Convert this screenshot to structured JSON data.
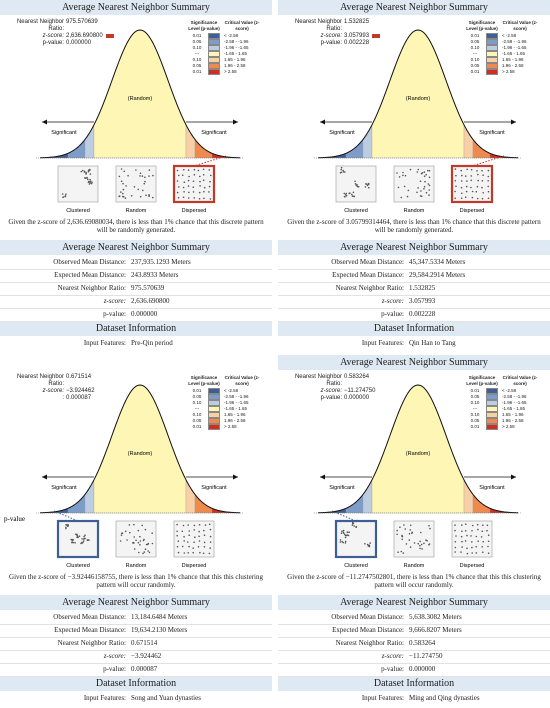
{
  "legend": {
    "header_p": "Significance Level (p-value)",
    "header_z": "Critical Value (z-score)",
    "rows": [
      {
        "p": "0.01",
        "z": "< -2.58",
        "color": "#3d5f95"
      },
      {
        "p": "0.05",
        "z": "-2.58 - -1.96",
        "color": "#7d9dc8"
      },
      {
        "p": "0.10",
        "z": "-1.96 - -1.65",
        "color": "#bccde3"
      },
      {
        "p": "---",
        "z": "-1.65 - 1.65",
        "color": "#fdf6b5"
      },
      {
        "p": "0.10",
        "z": "1.65 - 1.96",
        "color": "#f9cfa6"
      },
      {
        "p": "0.05",
        "z": "1.96 - 2.58",
        "color": "#ef8a4f"
      },
      {
        "p": "0.01",
        "z": "> 2.58",
        "color": "#cf2e22"
      }
    ]
  },
  "curve_labels": {
    "left": "Significant",
    "center": "(Random)",
    "right": "Significant"
  },
  "patterns": [
    "Clustered",
    "Random",
    "Dispersed"
  ],
  "panels": [
    {
      "title": "Average Nearest Neighbor Summary",
      "stats": [
        {
          "label": "Nearest Neighbor Ratio:",
          "value": "975.570639"
        },
        {
          "label": "z-score:",
          "value": "2,636.690800"
        },
        {
          "label": "p-value:",
          "value": "0.000000"
        }
      ],
      "marker_color": "#c0392b",
      "highlight": 2,
      "highlight_color": "#c0392b",
      "caption": "Given the z-score of 2,636.69080034, there is less than 1% chance that this discrete pattern will be randomly generated.",
      "summary_title": "Average Nearest Neighbor Summary",
      "rows": [
        {
          "label": "Observed Mean Distance:",
          "value": "237,935.1293 Meters"
        },
        {
          "label": "Expected Mean Distance:",
          "value": "243.8933 Meters"
        },
        {
          "label": "Nearest Neighbor Ratio:",
          "value": "975.570639"
        },
        {
          "label": "z-score:",
          "value": "2,636.690800"
        },
        {
          "label": "p-value:",
          "value": "0.000000"
        }
      ],
      "dataset_title": "Dataset Information",
      "input": {
        "label": "Input Features:",
        "value": "Pre-Qin period"
      }
    },
    {
      "title": "Average Nearest Neighbor Summary",
      "stats": [
        {
          "label": "Nearest Neighbor Ratio:",
          "value": "1.532825"
        },
        {
          "label": "z-score:",
          "value": "3.057993"
        },
        {
          "label": "p-value:",
          "value": "0.002228"
        }
      ],
      "marker_color": "#c0392b",
      "highlight": 2,
      "highlight_color": "#c0392b",
      "caption": "Given the z-score of 3.05799314464, there is less than 1% chance that this discrete pattern will be randomly generated.",
      "summary_title": "Average Nearest Neighbor Summary",
      "rows": [
        {
          "label": "Observed Mean Distance:",
          "value": "45,347.5334 Meters"
        },
        {
          "label": "Expected Mean Distance:",
          "value": "29,584.2914 Meters"
        },
        {
          "label": "Nearest Neighbor Ratio:",
          "value": "1.532825"
        },
        {
          "label": "z-score:",
          "value": "3.057993"
        },
        {
          "label": "p-value:",
          "value": "0.002228"
        }
      ],
      "dataset_title": "Dataset Information",
      "input": {
        "label": "Input Features:",
        "value": "Qin Han to Tang"
      }
    },
    {
      "stats": [
        {
          "label": "Nearest Neighbor Ratio:",
          "value": "0.671514"
        },
        {
          "label": "z-score:",
          "value": "−3.924462"
        },
        {
          "label": ":",
          "value": "0.000087"
        }
      ],
      "stray_label": "p-value",
      "highlight": 0,
      "highlight_color": "#3d5f95",
      "caption": "Given the z-score of −3.92446158755, there is less than 1% chance that this this clustering pattern will occur randomly.",
      "summary_title": "Average Nearest Neighbor Summary",
      "rows": [
        {
          "label": "Observed Mean Distance:",
          "value": "13,184.6484 Meters"
        },
        {
          "label": "Expected Mean Distance:",
          "value": "19,634.2130 Meters"
        },
        {
          "label": "Nearest Neighbor Ratio:",
          "value": "0.671514"
        },
        {
          "label": "z-score:",
          "value": "−3.924462"
        },
        {
          "label": "p-value:",
          "value": "0.000087"
        }
      ],
      "dataset_title": "Dataset Information",
      "input": {
        "label": "Input Features:",
        "value": "Song and Yuan dynasties"
      }
    },
    {
      "title": "Average Nearest Neighbor Summary",
      "stats": [
        {
          "label": "Nearest Neighbor Ratio:",
          "value": "0.583264"
        },
        {
          "label": "z-score:",
          "value": "−11.274750"
        },
        {
          "label": "p-value:",
          "value": "0.000000"
        }
      ],
      "highlight": 0,
      "highlight_color": "#3d5f95",
      "caption": "Given the z-score of −11.2747502801, there is less than 1% chance that this this clustering pattern will occur randomly.",
      "summary_title": "Average Nearest Neighbor Summary",
      "rows": [
        {
          "label": "Observed Mean Distance:",
          "value": "5,638.3082 Meters"
        },
        {
          "label": "Expected Mean Distance:",
          "value": "9,666.8207 Meters"
        },
        {
          "label": "Nearest Neighbor Ratio:",
          "value": "0.583264"
        },
        {
          "label": "z-score:",
          "value": "−11.274750"
        },
        {
          "label": "p-value:",
          "value": "0.000000"
        }
      ],
      "dataset_title": "Dataset Information",
      "input": {
        "label": "Input Features:",
        "value": "Ming and Qing dynasties"
      }
    }
  ]
}
